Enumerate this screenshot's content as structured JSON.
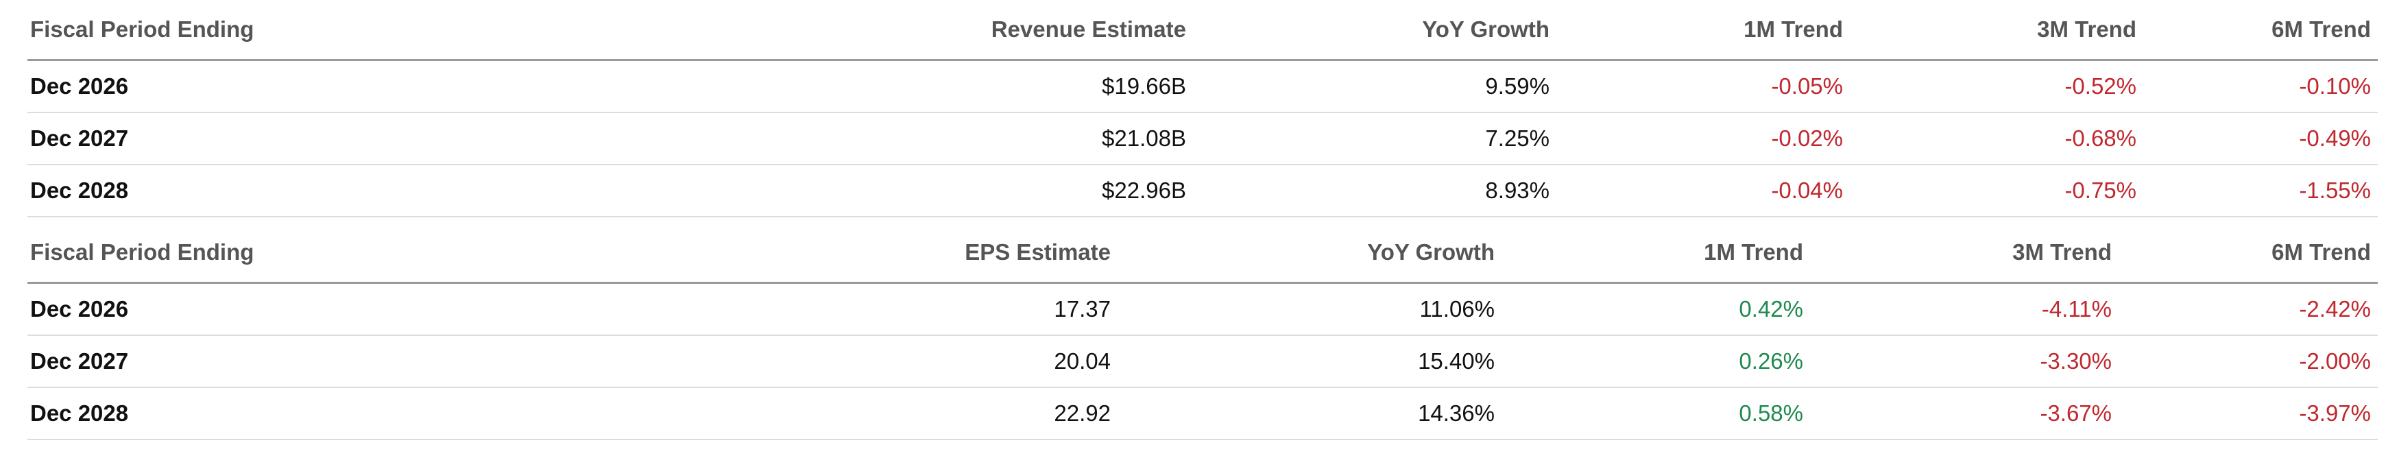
{
  "revenue_table": {
    "headers": [
      "Fiscal Period Ending",
      "Revenue Estimate",
      "YoY Growth",
      "1M Trend",
      "3M Trend",
      "6M Trend"
    ],
    "rows": [
      {
        "period": "Dec 2026",
        "estimate": "$19.66B",
        "yoy": "9.59%",
        "m1": "-0.05%",
        "m3": "-0.52%",
        "m6": "-0.10%"
      },
      {
        "period": "Dec 2027",
        "estimate": "$21.08B",
        "yoy": "7.25%",
        "m1": "-0.02%",
        "m3": "-0.68%",
        "m6": "-0.49%"
      },
      {
        "period": "Dec 2028",
        "estimate": "$22.96B",
        "yoy": "8.93%",
        "m1": "-0.04%",
        "m3": "-0.75%",
        "m6": "-1.55%"
      }
    ]
  },
  "eps_table": {
    "headers": [
      "Fiscal Period Ending",
      "EPS Estimate",
      "YoY Growth",
      "1M Trend",
      "3M Trend",
      "6M Trend"
    ],
    "rows": [
      {
        "period": "Dec 2026",
        "estimate": "17.37",
        "yoy": "11.06%",
        "m1": "0.42%",
        "m3": "-4.11%",
        "m6": "-2.42%"
      },
      {
        "period": "Dec 2027",
        "estimate": "20.04",
        "yoy": "15.40%",
        "m1": "0.26%",
        "m3": "-3.30%",
        "m6": "-2.00%"
      },
      {
        "period": "Dec 2028",
        "estimate": "22.92",
        "yoy": "14.36%",
        "m1": "0.58%",
        "m3": "-3.67%",
        "m6": "-3.97%"
      }
    ]
  },
  "colors": {
    "negative": "#c0282f",
    "positive": "#1e8a4e",
    "header_text": "#555555"
  }
}
